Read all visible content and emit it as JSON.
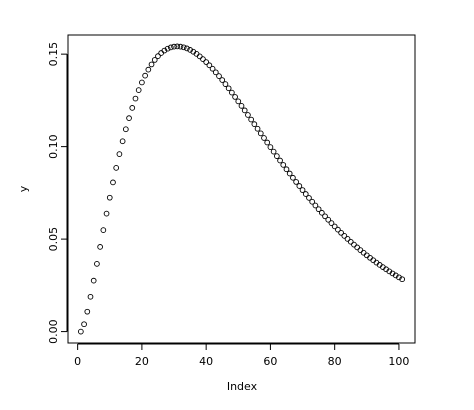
{
  "chart_data": {
    "type": "scatter",
    "xlabel": "Index",
    "ylabel": "y",
    "x": [
      1,
      2,
      3,
      4,
      5,
      6,
      7,
      8,
      9,
      10,
      11,
      12,
      13,
      14,
      15,
      16,
      17,
      18,
      19,
      20,
      21,
      22,
      23,
      24,
      25,
      26,
      27,
      28,
      29,
      30,
      31,
      32,
      33,
      34,
      35,
      36,
      37,
      38,
      39,
      40,
      41,
      42,
      43,
      44,
      45,
      46,
      47,
      48,
      49,
      50,
      51,
      52,
      53,
      54,
      55,
      56,
      57,
      58,
      59,
      60,
      61,
      62,
      63,
      64,
      65,
      66,
      67,
      68,
      69,
      70,
      71,
      72,
      73,
      74,
      75,
      76,
      77,
      78,
      79,
      80,
      81,
      82,
      83,
      84,
      85,
      86,
      87,
      88,
      89,
      90,
      91,
      92,
      93,
      94,
      95,
      96,
      97,
      98,
      99,
      100,
      101
    ],
    "values": [
      0,
      0.004,
      0.01076,
      0.01881,
      0.02754,
      0.03662,
      0.04579,
      0.05488,
      0.06378,
      0.0724,
      0.08066,
      0.08851,
      0.09594,
      0.1029,
      0.10939,
      0.1154,
      0.12093,
      0.12598,
      0.13057,
      0.13469,
      0.13837,
      0.14161,
      0.14444,
      0.14687,
      0.14892,
      0.1506,
      0.15194,
      0.15294,
      0.15364,
      0.15405,
      0.15418,
      0.15405,
      0.15369,
      0.1531,
      0.1523,
      0.15131,
      0.15015,
      0.14881,
      0.14733,
      0.14572,
      0.14398,
      0.14212,
      0.14017,
      0.13812,
      0.136,
      0.1338,
      0.13154,
      0.12922,
      0.12687,
      0.12447,
      0.12204,
      0.11959,
      0.11712,
      0.11464,
      0.11215,
      0.10966,
      0.10716,
      0.10468,
      0.10221,
      0.09975,
      0.0973,
      0.09488,
      0.09248,
      0.09011,
      0.08776,
      0.08545,
      0.08316,
      0.08091,
      0.0787,
      0.07652,
      0.07437,
      0.07227,
      0.0702,
      0.06817,
      0.06618,
      0.06424,
      0.06233,
      0.06046,
      0.05864,
      0.05686,
      0.05511,
      0.05341,
      0.05175,
      0.05013,
      0.04855,
      0.04701,
      0.04551,
      0.04404,
      0.04262,
      0.04124,
      0.03989,
      0.03857,
      0.0373,
      0.03606,
      0.03486,
      0.03369,
      0.03255,
      0.03145,
      0.03038,
      0.02934,
      0.02833
    ],
    "color": "#000000",
    "xlim": [
      -3,
      105
    ],
    "ylim": [
      -0.00617,
      0.16035
    ],
    "xticks": [
      0,
      20,
      40,
      60,
      80,
      100
    ],
    "yticks": [
      {
        "value": 0,
        "label": "0.00"
      },
      0.05,
      {
        "value": 0.1,
        "label": "0.10"
      },
      0.15
    ]
  }
}
